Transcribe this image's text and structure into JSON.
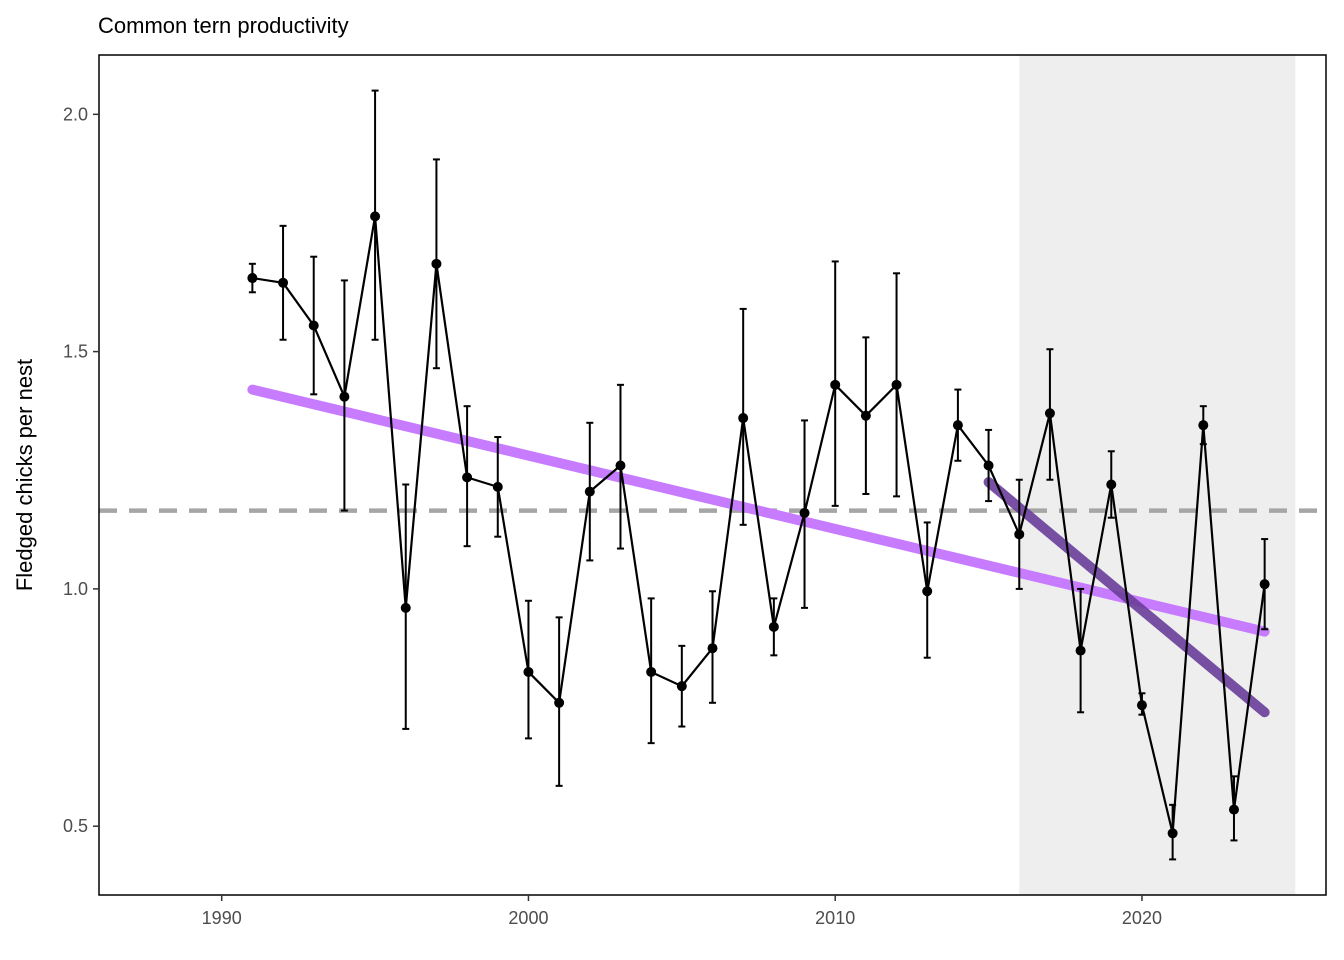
{
  "chart_data": {
    "type": "line",
    "title": "Common tern productivity",
    "xlabel": "",
    "ylabel": "Fledged chicks per nest",
    "xlim": [
      1986,
      2026
    ],
    "ylim": [
      0.355,
      2.125
    ],
    "x_ticks": [
      "1990",
      "2000",
      "2010",
      "2020"
    ],
    "y_ticks": [
      "0.5",
      "1.0",
      "1.5",
      "2.0"
    ],
    "grid": false,
    "shaded_region": {
      "x_start": 2016,
      "x_end": 2025,
      "color": "#eeeeee"
    },
    "reference_line": {
      "y": 1.165,
      "style": "dashed",
      "color": "#a6a6a6"
    },
    "series": [
      {
        "type": "line-with-points-and-errorbars",
        "color": "#000000",
        "points": [
          {
            "x": 1991,
            "y": 1.655,
            "lo": 1.625,
            "hi": 1.685
          },
          {
            "x": 1992,
            "y": 1.645,
            "lo": 1.525,
            "hi": 1.765
          },
          {
            "x": 1993,
            "y": 1.555,
            "lo": 1.41,
            "hi": 1.7
          },
          {
            "x": 1994,
            "y": 1.405,
            "lo": 1.165,
            "hi": 1.65
          },
          {
            "x": 1995,
            "y": 1.785,
            "lo": 1.525,
            "hi": 2.05
          },
          {
            "x": 1996,
            "y": 0.96,
            "lo": 0.705,
            "hi": 1.22
          },
          {
            "x": 1997,
            "y": 1.685,
            "lo": 1.465,
            "hi": 1.905
          },
          {
            "x": 1998,
            "y": 1.235,
            "lo": 1.09,
            "hi": 1.385
          },
          {
            "x": 1999,
            "y": 1.215,
            "lo": 1.11,
            "hi": 1.32
          },
          {
            "x": 2000,
            "y": 0.825,
            "lo": 0.685,
            "hi": 0.975
          },
          {
            "x": 2001,
            "y": 0.76,
            "lo": 0.585,
            "hi": 0.94
          },
          {
            "x": 2002,
            "y": 1.205,
            "lo": 1.06,
            "hi": 1.35
          },
          {
            "x": 2003,
            "y": 1.26,
            "lo": 1.085,
            "hi": 1.43
          },
          {
            "x": 2004,
            "y": 0.825,
            "lo": 0.675,
            "hi": 0.98
          },
          {
            "x": 2005,
            "y": 0.795,
            "lo": 0.71,
            "hi": 0.88
          },
          {
            "x": 2006,
            "y": 0.875,
            "lo": 0.76,
            "hi": 0.995
          },
          {
            "x": 2007,
            "y": 1.36,
            "lo": 1.135,
            "hi": 1.59
          },
          {
            "x": 2008,
            "y": 0.92,
            "lo": 0.86,
            "hi": 0.98
          },
          {
            "x": 2009,
            "y": 1.16,
            "lo": 0.96,
            "hi": 1.355
          },
          {
            "x": 2010,
            "y": 1.43,
            "lo": 1.175,
            "hi": 1.69
          },
          {
            "x": 2011,
            "y": 1.365,
            "lo": 1.2,
            "hi": 1.53
          },
          {
            "x": 2012,
            "y": 1.43,
            "lo": 1.195,
            "hi": 1.665
          },
          {
            "x": 2013,
            "y": 0.995,
            "lo": 0.855,
            "hi": 1.14
          },
          {
            "x": 2014,
            "y": 1.345,
            "lo": 1.27,
            "hi": 1.42
          },
          {
            "x": 2015,
            "y": 1.26,
            "lo": 1.185,
            "hi": 1.335
          },
          {
            "x": 2016,
            "y": 1.115,
            "lo": 1.0,
            "hi": 1.23
          },
          {
            "x": 2017,
            "y": 1.37,
            "lo": 1.23,
            "hi": 1.505
          },
          {
            "x": 2018,
            "y": 0.87,
            "lo": 0.74,
            "hi": 1.0
          },
          {
            "x": 2019,
            "y": 1.22,
            "lo": 1.15,
            "hi": 1.29
          },
          {
            "x": 2020,
            "y": 0.755,
            "lo": 0.735,
            "hi": 0.78
          },
          {
            "x": 2021,
            "y": 0.485,
            "lo": 0.43,
            "hi": 0.545
          },
          {
            "x": 2022,
            "y": 1.345,
            "lo": 1.305,
            "hi": 1.385
          },
          {
            "x": 2023,
            "y": 0.535,
            "lo": 0.47,
            "hi": 0.605
          },
          {
            "x": 2024,
            "y": 1.01,
            "lo": 0.915,
            "hi": 1.105
          }
        ]
      }
    ],
    "trend_lines": [
      {
        "color": "#c77cff",
        "x": [
          1991,
          2024
        ],
        "y": [
          1.42,
          0.91
        ]
      },
      {
        "color": "#6a3d9a",
        "x": [
          2015,
          2024
        ],
        "y": [
          1.225,
          0.74
        ]
      }
    ]
  }
}
